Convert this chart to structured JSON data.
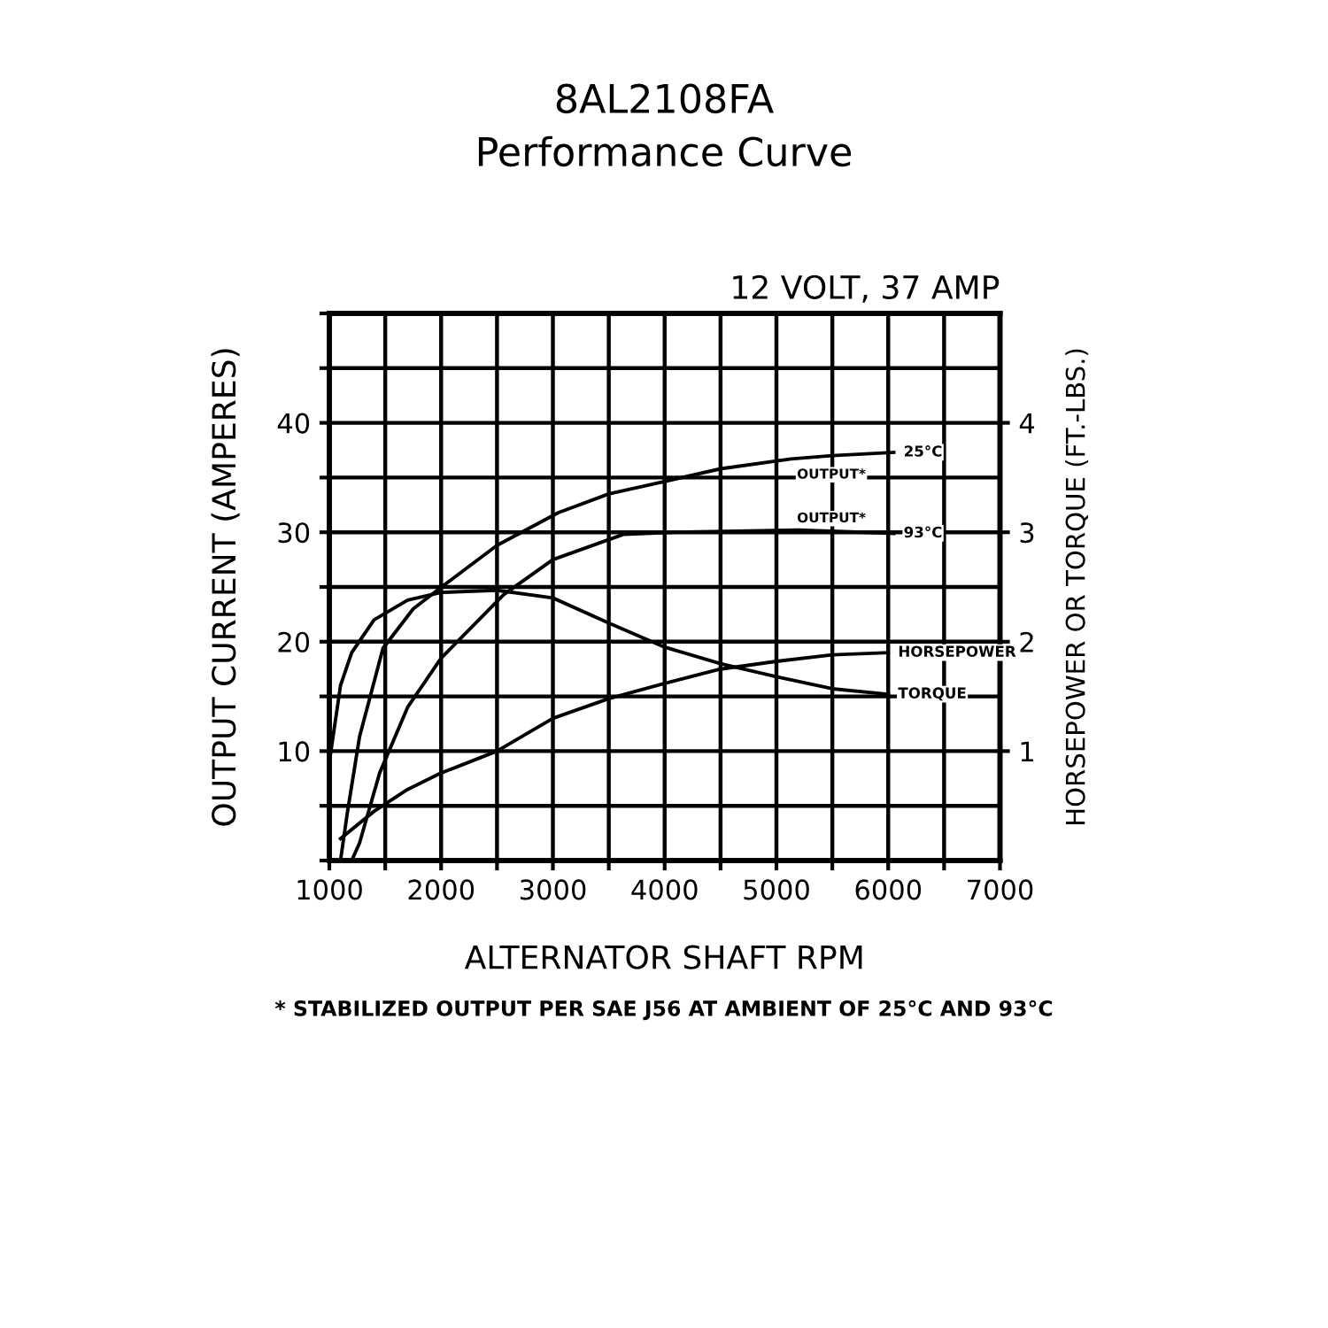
{
  "chart_data": {
    "type": "line",
    "title": "8AL2108FA",
    "subtitle": "Performance Curve",
    "xlabel": "ALTERNATOR SHAFT RPM",
    "ylabel": "OUTPUT CURRENT (AMPERES)",
    "y2label": "HORSEPOWER OR TORQUE (FT.-LBS.)",
    "annotations": [
      "12 VOLT, 37 AMP",
      "OUTPUT*",
      "OUTPUT*",
      "* STABILIZED OUTPUT PER SAE J56 AT AMBIENT OF 25°C AND 93°C"
    ],
    "xlim": [
      1000,
      7000
    ],
    "xticks": [
      1000,
      {
        "value": 1500,
        "label": null
      },
      2000,
      {
        "value": 2500,
        "label": null
      },
      3000,
      {
        "value": 3500,
        "label": null
      },
      4000,
      {
        "value": 4500,
        "label": null
      },
      5000,
      {
        "value": 5500,
        "label": null
      },
      6000,
      {
        "value": 6500,
        "label": null
      },
      7000
    ],
    "ylim": [
      0,
      50
    ],
    "yticks": [
      {
        "value": 0,
        "label": null
      },
      {
        "value": 5,
        "label": null
      },
      10,
      {
        "value": 15,
        "label": null
      },
      20,
      {
        "value": 25,
        "label": null
      },
      30,
      {
        "value": 35,
        "label": null
      },
      40,
      {
        "value": 45,
        "label": null
      },
      {
        "value": 50,
        "label": null
      }
    ],
    "y2lim": [
      0,
      5
    ],
    "y2ticks": [
      1,
      2,
      3,
      4
    ],
    "grid": true,
    "legend": false,
    "marker": "none",
    "line_style": "solid",
    "series": [
      {
        "name": "25°C",
        "color": "#000000",
        "x": [
          1100,
          1160,
          1270,
          1480,
          1750,
          2030,
          2500,
          3050,
          3500,
          4070,
          4500,
          5130,
          5500,
          6050
        ],
        "values": [
          0,
          4.3,
          11.3,
          19.4,
          23,
          25.2,
          28.8,
          31.8,
          33.5,
          34.8,
          35.8,
          36.7,
          37.0,
          37.3
        ]
      },
      {
        "name": "93°C",
        "color": "#000000",
        "x": [
          1200,
          1270,
          1450,
          1700,
          2000,
          2560,
          3000,
          3630,
          4070,
          5200,
          6050
        ],
        "values": [
          0,
          1.6,
          8,
          14,
          18.5,
          24.3,
          27.5,
          29.8,
          30,
          30.2,
          29.9
        ]
      },
      {
        "name": "HORSEPOWER",
        "color": "#000000",
        "axis": "y2",
        "x": [
          1100,
          1400,
          1700,
          2000,
          2500,
          3000,
          3500,
          4000,
          4500,
          5000,
          5500,
          6000
        ],
        "values": [
          0.2,
          0.45,
          0.65,
          0.8,
          1.0,
          1.3,
          1.48,
          1.62,
          1.75,
          1.82,
          1.88,
          1.9
        ]
      },
      {
        "name": "TORQUE",
        "color": "#000000",
        "axis": "y2",
        "x": [
          1000,
          1100,
          1200,
          1400,
          1700,
          2000,
          2500,
          3000,
          3500,
          4000,
          4500,
          5000,
          5500,
          6000
        ],
        "values": [
          0.9,
          1.6,
          1.9,
          2.2,
          2.38,
          2.45,
          2.47,
          2.4,
          2.17,
          1.95,
          1.8,
          1.68,
          1.57,
          1.52
        ]
      }
    ]
  }
}
